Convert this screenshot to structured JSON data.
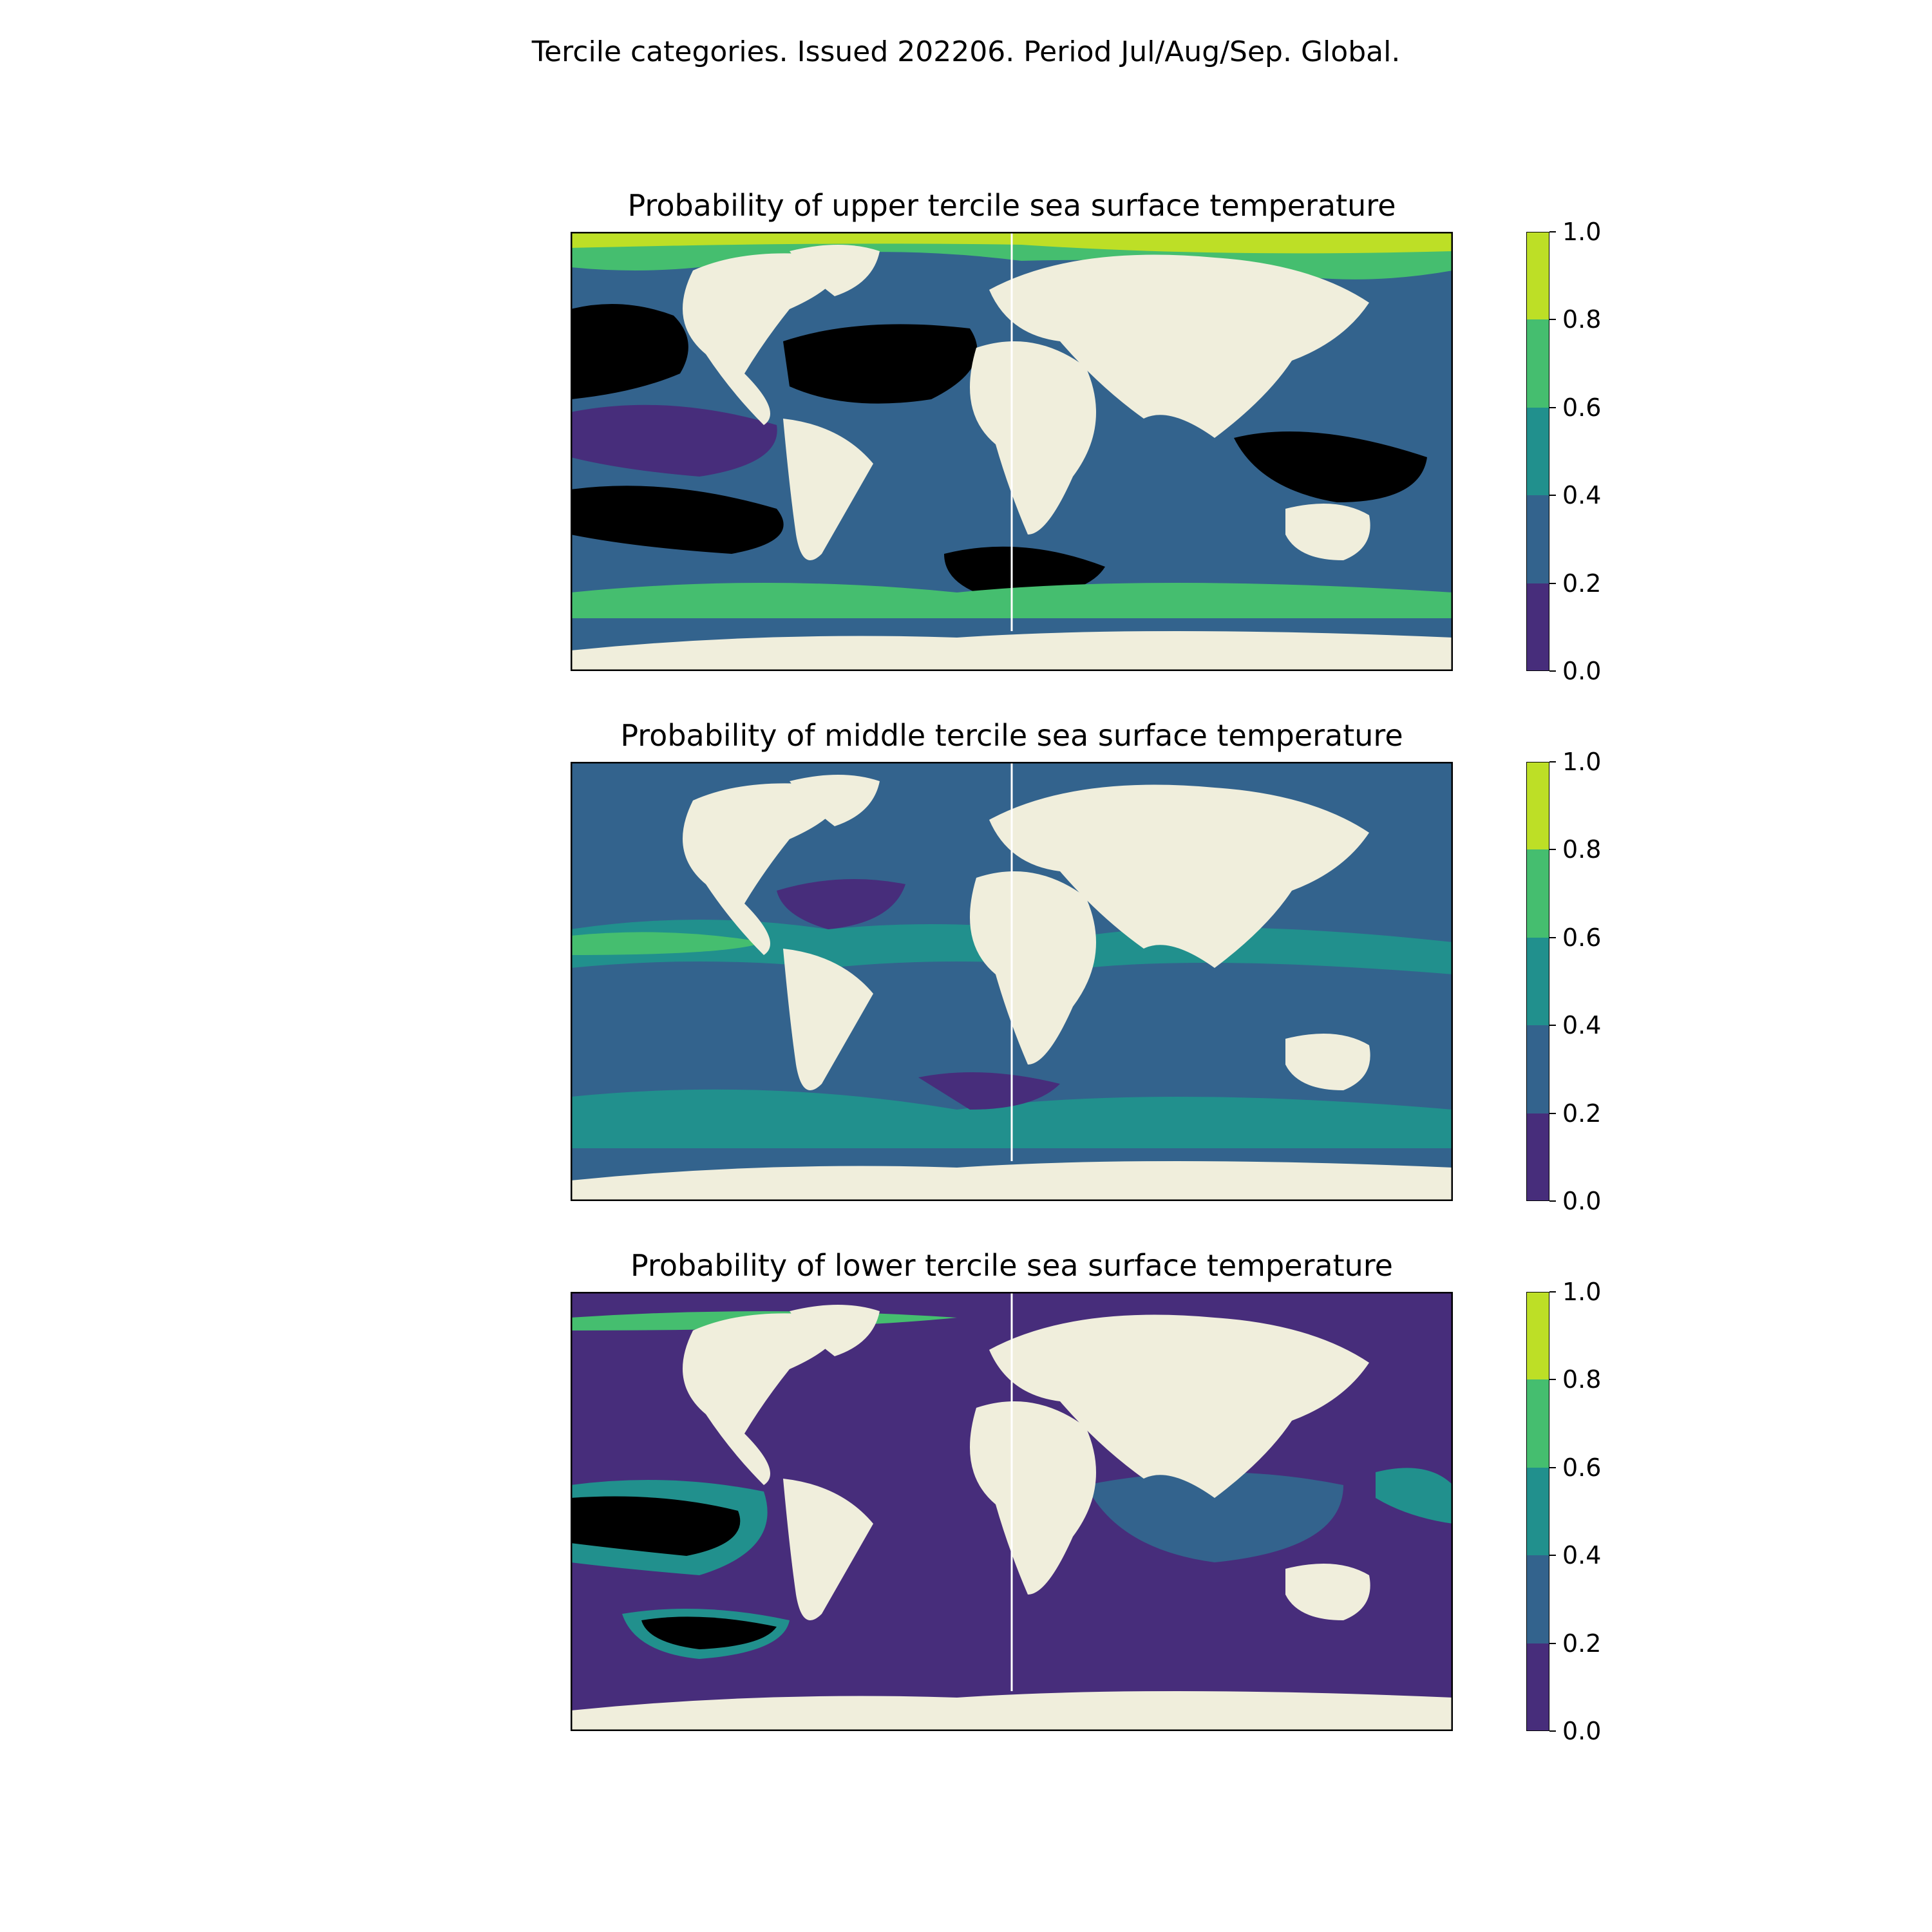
{
  "figure": {
    "title": "Tercile categories. Issued 202206. Period Jul/Aug/Sep. Global."
  },
  "colors": {
    "land": "#f0eedc",
    "levels": [
      "#472d7b",
      "#33638d",
      "#21908d",
      "#45be6f",
      "#bddf26"
    ]
  },
  "colorbar": {
    "ticks": [
      "0.0",
      "0.2",
      "0.4",
      "0.6",
      "0.8",
      "1.0"
    ]
  },
  "panels": [
    {
      "title": "Probability of upper tercile sea surface temperature"
    },
    {
      "title": "Probability of middle tercile sea surface temperature"
    },
    {
      "title": "Probability of lower tercile sea surface temperature"
    }
  ],
  "chart_data": {
    "type": "heatmap",
    "projection": "global",
    "levels": [
      0.0,
      0.2,
      0.4,
      0.6,
      0.8,
      1.0
    ],
    "grid": false,
    "colorbar_placement": "right",
    "maps": [
      {
        "name": "upper"
      },
      {
        "name": "middle"
      },
      {
        "name": "lower"
      }
    ]
  }
}
